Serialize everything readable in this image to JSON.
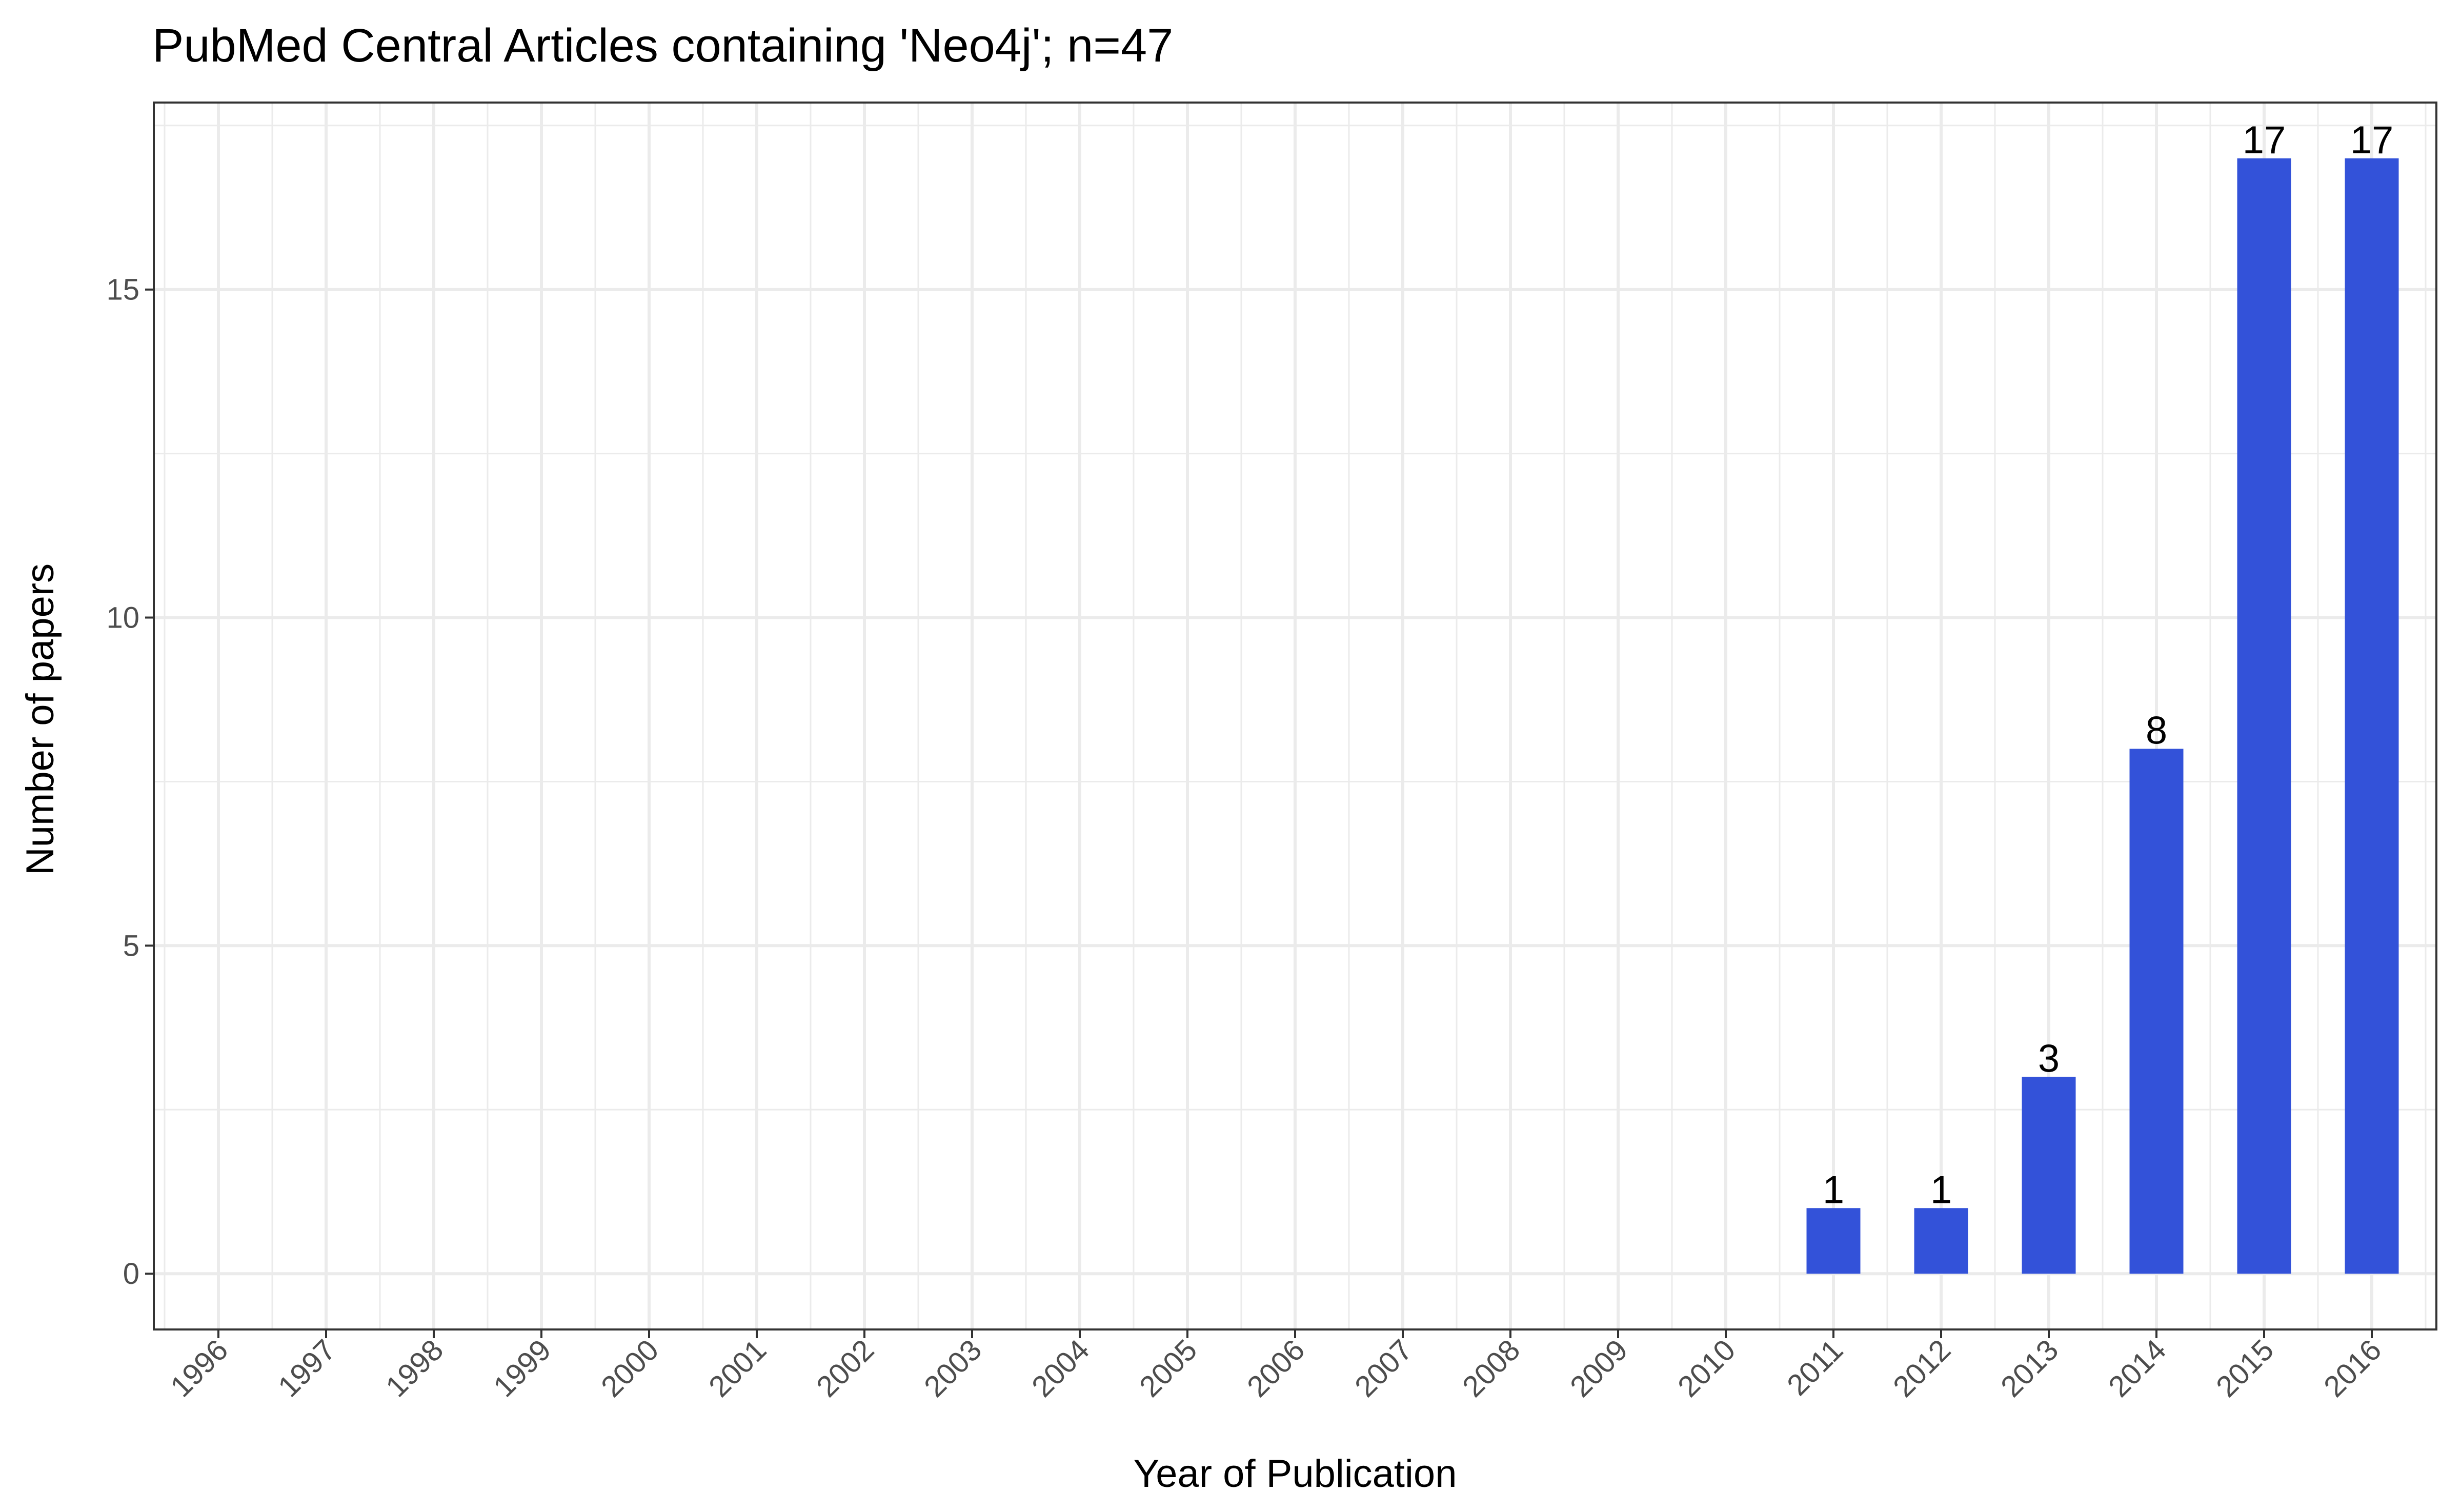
{
  "chart_data": {
    "type": "bar",
    "title": "PubMed Central Articles containing 'Neo4j'; n=47",
    "xlabel": "Year of Publication",
    "ylabel": "Number of papers",
    "categories": [
      "1996",
      "1997",
      "1998",
      "1999",
      "2000",
      "2001",
      "2002",
      "2003",
      "2004",
      "2005",
      "2006",
      "2007",
      "2008",
      "2009",
      "2010",
      "2011",
      "2012",
      "2013",
      "2014",
      "2015",
      "2016"
    ],
    "values": [
      0,
      0,
      0,
      0,
      0,
      0,
      0,
      0,
      0,
      0,
      0,
      0,
      0,
      0,
      0,
      1,
      1,
      3,
      8,
      17,
      17
    ],
    "data_labels": [
      "",
      "",
      "",
      "",
      "",
      "",
      "",
      "",
      "",
      "",
      "",
      "",
      "",
      "",
      "",
      "1",
      "1",
      "3",
      "8",
      "17",
      "17"
    ],
    "ylim": [
      -0.85,
      17.85
    ],
    "yticks": [
      0,
      5,
      10,
      15
    ],
    "grid": true,
    "bar_color": "#3352d9"
  }
}
